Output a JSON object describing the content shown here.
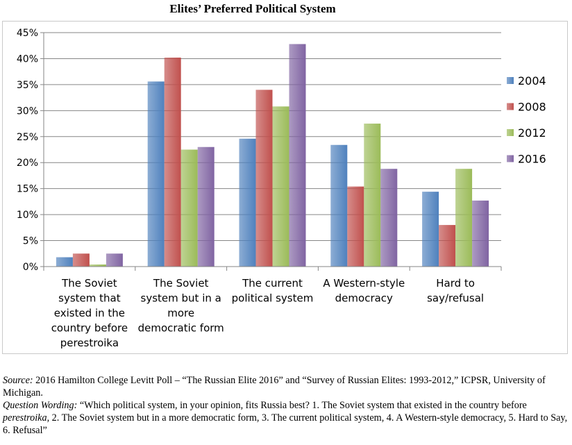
{
  "chart_data": {
    "type": "bar",
    "title": "Elites’ Preferred Political System",
    "categories": [
      [
        "The Soviet",
        "system that",
        "existed in the",
        "country before",
        "perestroika"
      ],
      [
        "The Soviet",
        "system but in a",
        "more",
        "democratic form"
      ],
      [
        "The current",
        "political system"
      ],
      [
        "A Western-style",
        "democracy"
      ],
      [
        "Hard to",
        "say/refusal"
      ]
    ],
    "series": [
      {
        "name": "2004",
        "values": [
          1.8,
          35.6,
          24.6,
          23.4,
          14.4
        ],
        "color": "#4f81bd"
      },
      {
        "name": "2008",
        "values": [
          2.5,
          40.2,
          34.0,
          15.4,
          8.0
        ],
        "color": "#c0504d"
      },
      {
        "name": "2012",
        "values": [
          0.4,
          22.5,
          30.8,
          27.5,
          18.8
        ],
        "color": "#9bbb59"
      },
      {
        "name": "2016",
        "values": [
          2.5,
          23.0,
          42.8,
          18.8,
          12.7
        ],
        "color": "#8064a2"
      }
    ],
    "yticks": [
      "0%",
      "5%",
      "10%",
      "15%",
      "20%",
      "25%",
      "30%",
      "35%",
      "40%",
      "45%"
    ],
    "ylim": [
      0,
      45
    ],
    "ylabel": "",
    "xlabel": "",
    "grid": true,
    "legend": "right"
  },
  "source": {
    "label": "Source:",
    "text": "2016 Hamilton College Levitt Poll – “The Russian Elite 2016” and “Survey of Russian Elites: 1993-2012,” ICPSR, University of Michigan."
  },
  "question": {
    "label": "Question Wording:",
    "text_before": "“Which political system, in your opinion, fits Russia best? 1. The Soviet system that existed in the country before ",
    "italic_word": "perestroika",
    "text_after": ", 2. The Soviet system but in a more democratic form, 3. The current political system, 4. A Western-style democracy, 5. Hard to Say, 6. Refusal”"
  }
}
